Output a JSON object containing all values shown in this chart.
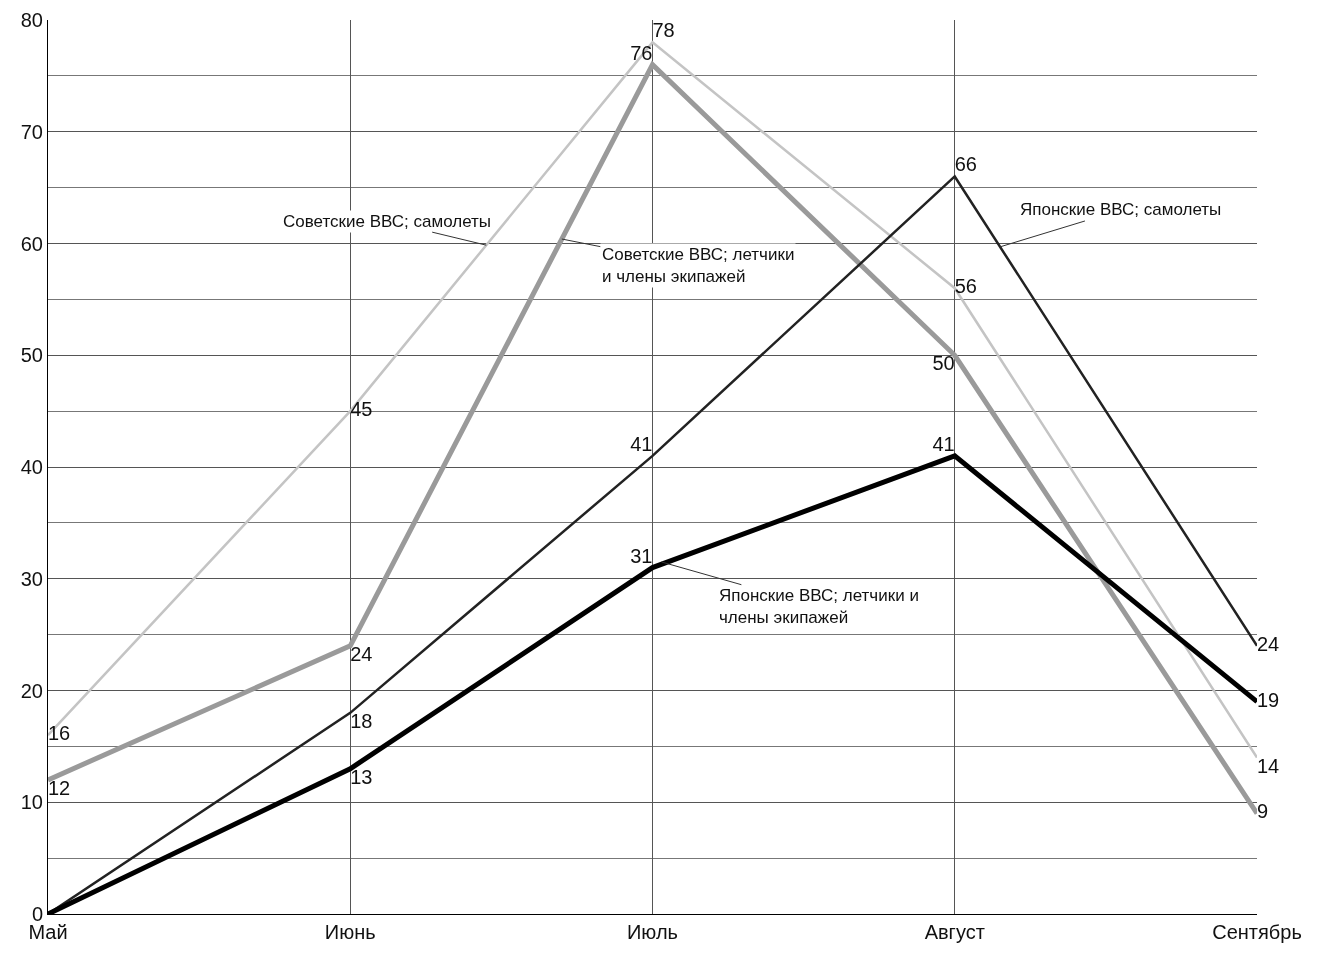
{
  "chart_data": {
    "type": "line",
    "categories": [
      "Май",
      "Июнь",
      "Июль",
      "Август",
      "Сентябрь"
    ],
    "series": [
      {
        "name": "Советские ВВС; самолеты",
        "color": "#c4c4c4",
        "values": [
          16,
          45,
          78,
          56,
          14
        ],
        "value_labels": [
          "16",
          "45",
          "78",
          "56",
          "14"
        ]
      },
      {
        "name": "Советские ВВС; летчики и члены экипажей",
        "color": "#9a9a9a",
        "values": [
          12,
          24,
          76,
          50,
          9
        ],
        "value_labels": [
          "12",
          "24",
          "76",
          "50",
          "9"
        ]
      },
      {
        "name": "Японские ВВС; самолеты",
        "color": "#222222",
        "values": [
          0,
          18,
          41,
          66,
          24
        ],
        "value_labels": [
          null,
          "18",
          "41",
          "66",
          "24"
        ]
      },
      {
        "name": "Японские ВВС; летчики и члены экипажей",
        "color": "#000000",
        "values": [
          0,
          13,
          31,
          41,
          19
        ],
        "value_labels": [
          null,
          "13",
          "31",
          "41",
          "19"
        ]
      }
    ],
    "ylim": [
      0,
      80
    ],
    "yticks": [
      0,
      10,
      20,
      30,
      40,
      50,
      60,
      70,
      80
    ],
    "grid": true,
    "legend": false,
    "marker": "none",
    "line_style": "solid"
  }
}
